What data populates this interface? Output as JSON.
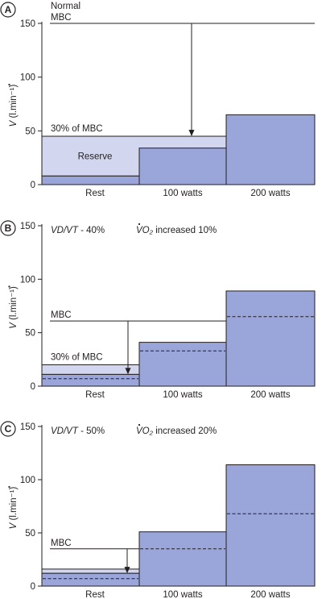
{
  "colors": {
    "bar_fill": "#9aa5d9",
    "reserve_fill": "#d2d6ee",
    "line": "#231f20"
  },
  "chart_data": [
    {
      "type": "bar",
      "panel_label": "A",
      "ylabel_prefix": "V",
      "ylabel_rest": "(l.min⁻¹)",
      "ylim": [
        0,
        150
      ],
      "yticks": [
        0,
        50,
        100,
        150
      ],
      "categories": [
        "Rest",
        "100 watts",
        "200 watts"
      ],
      "values": [
        8,
        34,
        65
      ],
      "dashed_values": [],
      "mbc": {
        "value": 150,
        "label_top": "Normal",
        "label": "MBC",
        "arrow_to": 45
      },
      "reserve": {
        "from": 8,
        "to": 45,
        "label": "Reserve",
        "span": "Rest–100 watts"
      },
      "mbc30": {
        "value": 45,
        "label": "30% of MBC"
      },
      "annotations": []
    },
    {
      "type": "bar",
      "panel_label": "B",
      "ylabel_prefix": "V",
      "ylabel_rest": "(l.min⁻¹)",
      "ylim": [
        0,
        150
      ],
      "yticks": [
        0,
        50,
        100,
        150
      ],
      "categories": [
        "Rest",
        "100 watts",
        "200 watts"
      ],
      "values": [
        11,
        41,
        89
      ],
      "dashed_values": [
        7,
        33,
        65
      ],
      "mbc": {
        "value": 61,
        "label_top": "",
        "label": "MBC",
        "arrow_to": 11
      },
      "reserve": {
        "from": 11,
        "to": 20,
        "label": "",
        "span": "Rest"
      },
      "mbc30": {
        "value": 20,
        "label": "30% of MBC"
      },
      "annotations": [
        {
          "main": "VD/VT",
          "suffix": " - 40%"
        },
        {
          "main": "VO₂",
          "suffix": " increased 10%"
        }
      ]
    },
    {
      "type": "bar",
      "panel_label": "C",
      "ylabel_prefix": "V",
      "ylabel_rest": "(l.min⁻¹)",
      "ylim": [
        0,
        150
      ],
      "yticks": [
        0,
        50,
        100,
        150
      ],
      "categories": [
        "Rest",
        "100 watts",
        "200 watts"
      ],
      "values": [
        12,
        51,
        114
      ],
      "dashed_values": [
        7,
        35,
        68
      ],
      "mbc": {
        "value": 35,
        "label_top": "",
        "label": "MBC",
        "arrow_to": 12
      },
      "reserve": {
        "from": 12,
        "to": 16,
        "label": "",
        "span": "Rest"
      },
      "mbc30": {
        "value": 16,
        "label": ""
      },
      "annotations": [
        {
          "main": "VD/VT",
          "suffix": " - 50%"
        },
        {
          "main": "VO₂",
          "suffix": " increased 20%"
        }
      ]
    }
  ]
}
